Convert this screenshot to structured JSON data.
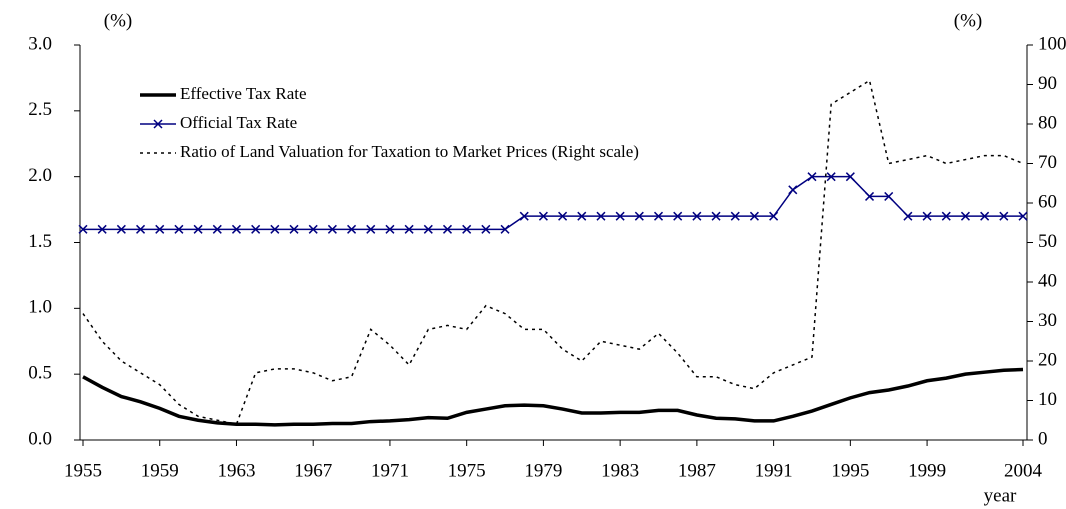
{
  "chart_data": {
    "type": "line",
    "y_label": "(%)",
    "y2_label": "(%)",
    "x_label": "year",
    "x": [
      1955,
      1956,
      1957,
      1958,
      1959,
      1960,
      1961,
      1962,
      1963,
      1964,
      1965,
      1966,
      1967,
      1968,
      1969,
      1970,
      1971,
      1972,
      1973,
      1974,
      1975,
      1976,
      1977,
      1978,
      1979,
      1980,
      1981,
      1982,
      1983,
      1984,
      1985,
      1986,
      1987,
      1988,
      1989,
      1990,
      1991,
      1992,
      1993,
      1994,
      1995,
      1996,
      1997,
      1998,
      1999,
      2000,
      2001,
      2002,
      2003,
      2004
    ],
    "series": [
      {
        "name": "Effective Tax Rate",
        "color": "#000000",
        "width": 3.5,
        "dash": false,
        "marker": null,
        "values": [
          0.48,
          0.4,
          0.33,
          0.29,
          0.24,
          0.18,
          0.15,
          0.13,
          0.12,
          0.12,
          0.115,
          0.12,
          0.12,
          0.125,
          0.125,
          0.14,
          0.145,
          0.155,
          0.17,
          0.165,
          0.21,
          0.235,
          0.26,
          0.265,
          0.26,
          0.235,
          0.205,
          0.205,
          0.21,
          0.21,
          0.225,
          0.225,
          0.19,
          0.165,
          0.16,
          0.145,
          0.145,
          0.18,
          0.22,
          0.27,
          0.32,
          0.36,
          0.38,
          0.41,
          0.45,
          0.47,
          0.5,
          0.515,
          0.53,
          0.535
        ]
      },
      {
        "name": "Official Tax Rate",
        "color": "#000080",
        "width": 1.5,
        "dash": false,
        "marker": "x",
        "values": [
          1.6,
          1.6,
          1.6,
          1.6,
          1.6,
          1.6,
          1.6,
          1.6,
          1.6,
          1.6,
          1.6,
          1.6,
          1.6,
          1.6,
          1.6,
          1.6,
          1.6,
          1.6,
          1.6,
          1.6,
          1.6,
          1.6,
          1.6,
          1.7,
          1.7,
          1.7,
          1.7,
          1.7,
          1.7,
          1.7,
          1.7,
          1.7,
          1.7,
          1.7,
          1.7,
          1.7,
          1.7,
          1.9,
          2.0,
          2.0,
          2.0,
          1.85,
          1.85,
          1.7,
          1.7,
          1.7,
          1.7,
          1.7,
          1.7,
          1.7
        ]
      },
      {
        "name": "Ratio of Land Valuation for Taxation to Market Prices (Right scale)",
        "color": "#000000",
        "width": 1.5,
        "dash": true,
        "marker": null,
        "axis": "y2",
        "values": [
          32,
          25,
          20,
          17,
          14,
          9,
          6,
          5,
          4,
          17,
          18,
          18,
          17,
          15,
          16,
          28,
          24,
          19,
          28,
          29,
          28,
          34,
          32,
          28,
          28,
          23,
          20,
          25,
          24,
          23,
          27,
          22,
          16,
          16,
          14,
          13,
          17,
          19,
          21,
          85,
          88,
          91,
          70,
          71,
          72,
          70,
          71,
          72,
          72,
          70
        ]
      }
    ],
    "xlim": [
      1955,
      2004
    ],
    "xticks": [
      1955,
      1959,
      1963,
      1967,
      1971,
      1975,
      1979,
      1983,
      1987,
      1991,
      1995,
      1999,
      2004
    ],
    "ylim": [
      0,
      3
    ],
    "yticks": [
      {
        "value": 0,
        "label": "0.0"
      },
      0.5,
      {
        "value": 1,
        "label": "1.0"
      },
      1.5,
      {
        "value": 2,
        "label": "2.0"
      },
      2.5,
      {
        "value": 3,
        "label": "3.0"
      }
    ],
    "y2lim": [
      0,
      100
    ],
    "y2ticks": [
      0,
      10,
      20,
      30,
      40,
      50,
      60,
      70,
      80,
      90,
      100
    ],
    "legend": "top-left"
  }
}
